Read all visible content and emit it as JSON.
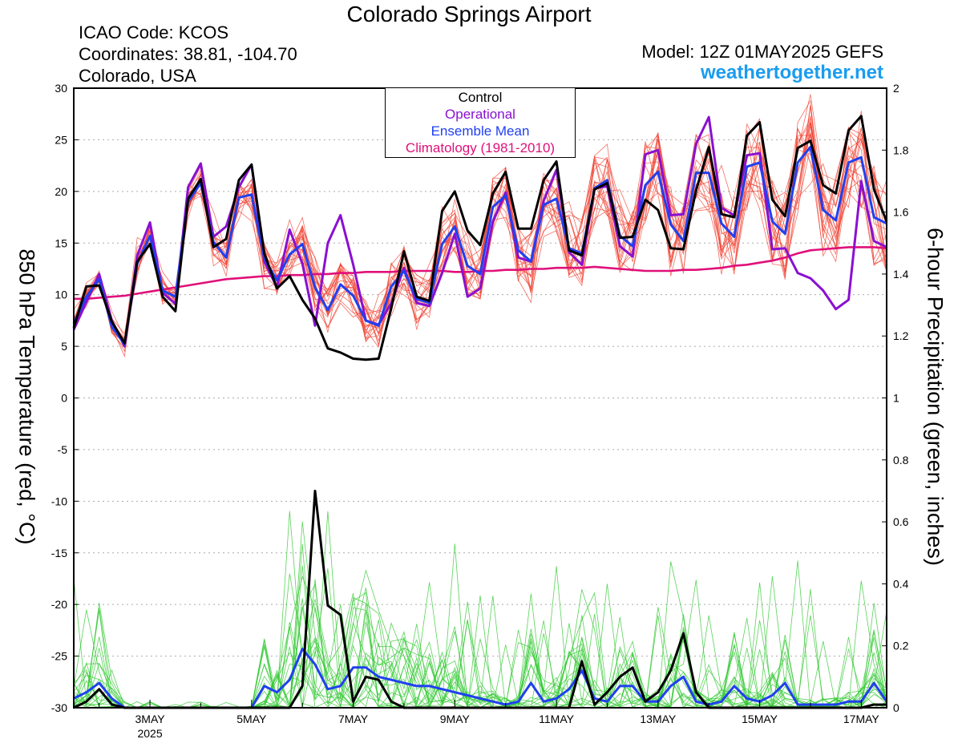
{
  "header": {
    "title": "Colorado Springs Airport",
    "icao": "ICAO Code: KCOS",
    "coordinates": "Coordinates: 38.81, -104.70",
    "region": "Colorado, USA",
    "model": "Model: 12Z 01MAY2025 GEFS",
    "website": "weathertogether.net"
  },
  "colors": {
    "control": "#000000",
    "operational": "#8a10d0",
    "ensemble_mean": "#2040f0",
    "climatology": "#e0107a",
    "temperature_members": "#f04030",
    "precip_members": "#30c830",
    "website": "#1a9cf0"
  },
  "chart_data": {
    "type": "line",
    "title": "Colorado Springs Airport",
    "ylabel": "850 hPa Temperature (red, °C)",
    "y2label": "6-hour Precipitation (green, inches)",
    "ylim": [
      -30,
      30
    ],
    "y2lim": [
      0,
      2
    ],
    "yticks": [
      "30",
      "25",
      "20",
      "15",
      "10",
      "5",
      "0",
      "-5",
      "-10",
      "-15",
      "-20",
      "-25",
      "-30"
    ],
    "y2ticks": [
      "2",
      "1.8",
      "1.6",
      "1.4",
      "1.2",
      "1",
      "0.8",
      "0.6",
      "0.4",
      "0.2",
      "0"
    ],
    "xlim": [
      "2025-05-01T12Z",
      "2025-05-17T12Z"
    ],
    "x_step_hours": 6,
    "xticks": [
      {
        "label": "3MAY",
        "sublabel": "2025",
        "day": 3
      },
      {
        "label": "5MAY",
        "sublabel": "",
        "day": 5
      },
      {
        "label": "7MAY",
        "sublabel": "",
        "day": 7
      },
      {
        "label": "9MAY",
        "sublabel": "",
        "day": 9
      },
      {
        "label": "11MAY",
        "sublabel": "",
        "day": 11
      },
      {
        "label": "13MAY",
        "sublabel": "",
        "day": 13
      },
      {
        "label": "15MAY",
        "sublabel": "",
        "day": 15
      },
      {
        "label": "17MAY",
        "sublabel": "",
        "day": 17
      }
    ],
    "grid": true,
    "legend_position": "top-center",
    "legend": [
      "Control",
      "Operational",
      "Ensemble Mean",
      "Climatology (1981-2010)"
    ],
    "series": [
      {
        "name": "Control",
        "axis": "temperature",
        "values": [
          6.8,
          10.8,
          10.9,
          7.4,
          5.3,
          13.2,
          14.9,
          9.8,
          8.4,
          19.3,
          21.2,
          14.6,
          15.4,
          21.1,
          22.6,
          14.0,
          10.6,
          11.8,
          9.5,
          7.7,
          4.8,
          4.4,
          3.8,
          3.7,
          3.8,
          8.7,
          14.2,
          9.8,
          9.4,
          18.1,
          20.0,
          16.2,
          14.8,
          19.8,
          21.9,
          16.4,
          16.4,
          21.1,
          22.9,
          14.3,
          13.8,
          20.2,
          20.8,
          15.5,
          15.6,
          19.2,
          18.2,
          14.5,
          14.4,
          20.1,
          24.3,
          17.8,
          17.5,
          25.4,
          26.7,
          19.2,
          17.6,
          24.2,
          24.9,
          20.6,
          19.8,
          25.9,
          27.3,
          20.2,
          17.1
        ]
      },
      {
        "name": "Operational",
        "axis": "temperature",
        "values": [
          6.6,
          9.3,
          12.0,
          7.5,
          5.0,
          13.8,
          17.0,
          10.2,
          9.1,
          20.4,
          22.7,
          15.6,
          16.6,
          20.4,
          22.6,
          13.2,
          10.7,
          16.3,
          13.0,
          7.0,
          15.0,
          17.7,
          12.9,
          7.5,
          7.1,
          9.2,
          12.6,
          9.2,
          8.9,
          12.1,
          15.9,
          9.8,
          10.6,
          17.1,
          19.9,
          13.6,
          13.2,
          19.1,
          22.1,
          14.1,
          12.9,
          20.3,
          20.5,
          14.7,
          13.7,
          23.6,
          24.0,
          17.7,
          17.8,
          24.6,
          27.2,
          18.4,
          17.7,
          23.5,
          23.7,
          14.4,
          14.5,
          12.1,
          11.6,
          10.4,
          8.6,
          9.5,
          21.0,
          15.2,
          14.6
        ]
      },
      {
        "name": "Ensemble Mean",
        "axis": "temperature",
        "values": [
          7.2,
          9.8,
          11.5,
          6.9,
          5.2,
          13.0,
          15.7,
          10.4,
          9.8,
          19.0,
          20.8,
          15.1,
          13.6,
          19.4,
          19.7,
          13.5,
          11.4,
          13.9,
          14.9,
          10.7,
          8.5,
          11.0,
          9.9,
          7.5,
          7.0,
          10.8,
          12.3,
          9.6,
          9.2,
          14.9,
          16.6,
          12.8,
          12.0,
          18.5,
          19.6,
          14.3,
          13.2,
          18.7,
          19.3,
          14.5,
          14.0,
          20.3,
          21.1,
          15.7,
          14.7,
          20.6,
          21.9,
          16.8,
          15.2,
          21.8,
          21.8,
          16.9,
          15.6,
          22.4,
          22.8,
          17.1,
          15.9,
          22.8,
          24.3,
          18.2,
          17.2,
          22.8,
          23.3,
          17.5,
          16.9
        ]
      },
      {
        "name": "Climatology (1981-2010)",
        "axis": "temperature",
        "values": [
          9.6,
          9.6,
          9.7,
          9.8,
          9.9,
          10.1,
          10.3,
          10.5,
          10.7,
          10.9,
          11.1,
          11.3,
          11.5,
          11.6,
          11.7,
          11.8,
          11.8,
          11.9,
          11.9,
          12.0,
          12.0,
          12.1,
          12.1,
          12.2,
          12.2,
          12.2,
          12.3,
          12.3,
          12.3,
          12.3,
          12.2,
          12.2,
          12.3,
          12.3,
          12.4,
          12.4,
          12.5,
          12.5,
          12.6,
          12.6,
          12.6,
          12.7,
          12.6,
          12.5,
          12.4,
          12.3,
          12.3,
          12.3,
          12.4,
          12.4,
          12.5,
          12.6,
          12.8,
          12.9,
          13.1,
          13.3,
          13.6,
          14.0,
          14.3,
          14.4,
          14.5,
          14.6,
          14.6,
          14.6,
          14.5
        ]
      },
      {
        "name": "Control",
        "axis": "precipitation",
        "values": [
          0.0,
          0.02,
          0.06,
          0.01,
          0.0,
          0.0,
          0.0,
          0.0,
          0.0,
          0.0,
          0.0,
          0.0,
          0.0,
          0.0,
          0.0,
          0.0,
          0.0,
          0.0,
          0.07,
          0.7,
          0.33,
          0.3,
          0.02,
          0.1,
          0.09,
          0.02,
          0.0,
          0.0,
          0.0,
          0.0,
          0.0,
          0.0,
          0.0,
          0.0,
          0.0,
          0.0,
          0.0,
          0.0,
          0.0,
          0.0,
          0.15,
          0.01,
          0.05,
          0.1,
          0.13,
          0.02,
          0.05,
          0.12,
          0.24,
          0.05,
          0.0,
          0.0,
          0.0,
          0.0,
          0.0,
          0.0,
          0.0,
          0.0,
          0.0,
          0.0,
          0.0,
          0.0,
          0.0,
          0.01,
          0.01
        ]
      },
      {
        "name": "Ensemble Mean",
        "axis": "precipitation",
        "values": [
          0.03,
          0.05,
          0.08,
          0.03,
          0.0,
          0.0,
          0.0,
          0.0,
          0.0,
          0.0,
          0.0,
          0.0,
          0.0,
          0.0,
          0.0,
          0.07,
          0.05,
          0.09,
          0.19,
          0.14,
          0.06,
          0.07,
          0.13,
          0.13,
          0.1,
          0.09,
          0.08,
          0.07,
          0.07,
          0.06,
          0.05,
          0.04,
          0.03,
          0.02,
          0.01,
          0.02,
          0.08,
          0.02,
          0.03,
          0.06,
          0.12,
          0.03,
          0.02,
          0.07,
          0.07,
          0.02,
          0.02,
          0.07,
          0.1,
          0.02,
          0.01,
          0.02,
          0.07,
          0.03,
          0.02,
          0.04,
          0.08,
          0.01,
          0.01,
          0.01,
          0.01,
          0.02,
          0.02,
          0.08,
          0.02
        ]
      }
    ]
  }
}
